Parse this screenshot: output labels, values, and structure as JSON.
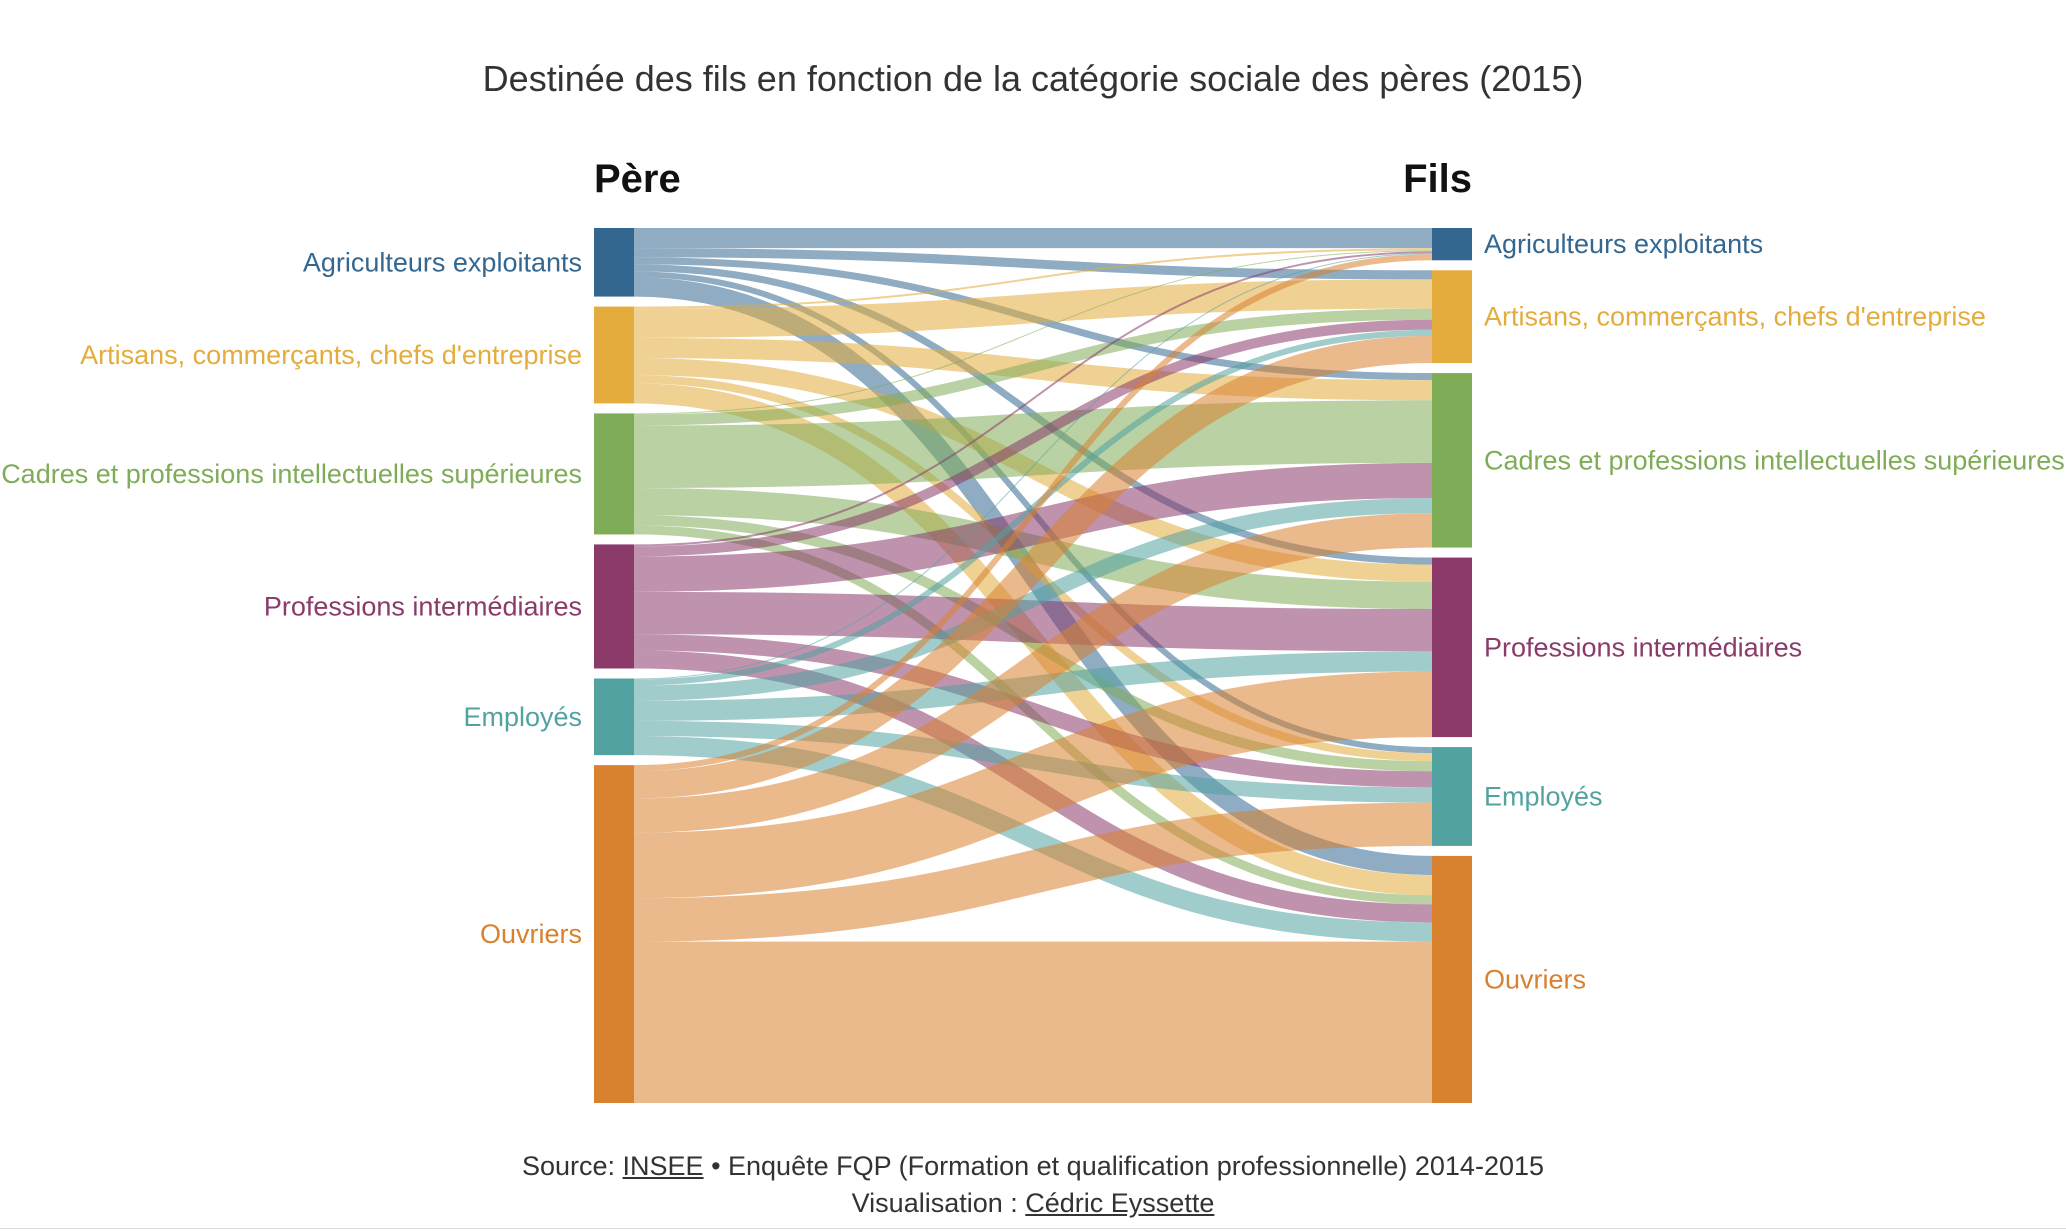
{
  "chart_data": {
    "type": "sankey",
    "title": "Destinée des fils en fonction de la catégorie sociale des pères (2015)",
    "left_header": "Père",
    "right_header": "Fils",
    "categories": [
      {
        "name": "Agriculteurs exploitants",
        "color": "#336790"
      },
      {
        "name": "Artisans, commerçants, chefs d'entreprise",
        "color": "#e4ac3c"
      },
      {
        "name": "Cadres et professions intellectuelles supérieures",
        "color": "#7fac57"
      },
      {
        "name": "Professions intermédiaires",
        "color": "#8b3a6a"
      },
      {
        "name": "Employés",
        "color": "#52a2a2"
      },
      {
        "name": "Ouvriers",
        "color": "#d8822f"
      }
    ],
    "flows": [
      [
        2.0,
        0.9,
        0.7,
        0.7,
        0.6,
        1.9
      ],
      [
        0.2,
        2.9,
        2.0,
        1.7,
        0.8,
        2.0
      ],
      [
        0.1,
        1.1,
        6.2,
        2.7,
        1.0,
        0.9
      ],
      [
        0.2,
        1.0,
        3.5,
        4.2,
        1.6,
        1.8
      ],
      [
        0.1,
        0.6,
        1.5,
        2.0,
        1.5,
        1.9
      ],
      [
        0.6,
        2.7,
        3.4,
        6.5,
        4.3,
        16.0
      ]
    ]
  },
  "footer": {
    "source_prefix": "Source: ",
    "source_link": "INSEE",
    "source_rest": " • Enquête FQP (Formation et qualification professionnelle) 2014-2015",
    "visu_prefix": "Visualisation : ",
    "visu_link": "Cédric Eyssette"
  }
}
